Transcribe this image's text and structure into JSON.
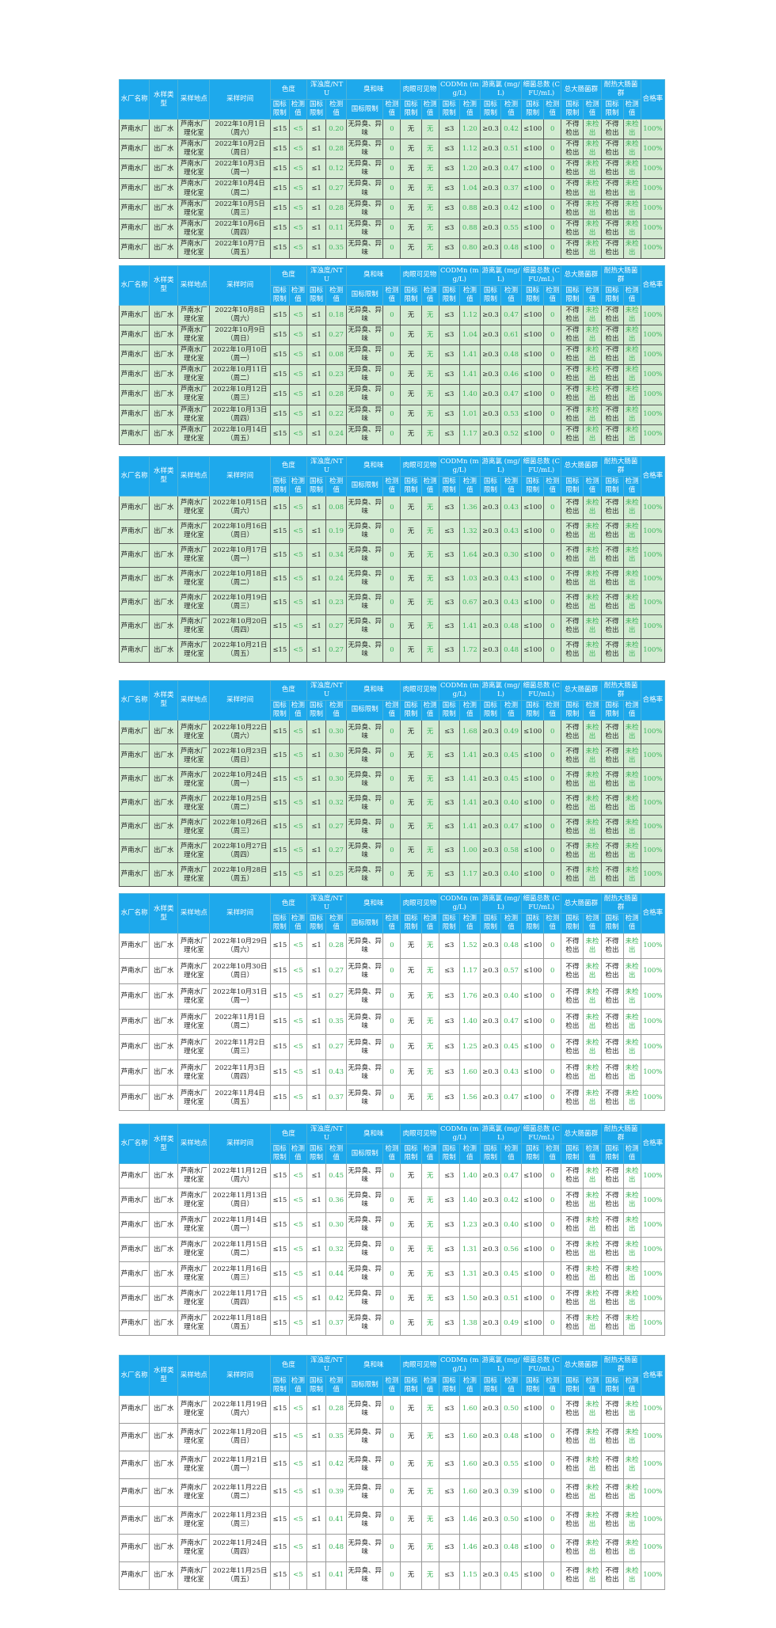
{
  "headers": {
    "plant": "水厂名称",
    "sample_type": "水样类型",
    "site": "采样地点",
    "time": "采样时间",
    "color": "色度",
    "turbidity": "浑浊度/NTU",
    "odor": "臭和味",
    "visible": "肉眼可见物",
    "codmn": "CODMn (mg/L)",
    "chlorine": "游离氯 (mg/L)",
    "bacteria": "细菌总数 (CFU/mL)",
    "coliform": "总大肠菌群",
    "thermo_coliform": "耐热大肠菌群",
    "rate": "合格率",
    "limit": "国标限制",
    "value": "检测值"
  },
  "common": {
    "plant": "芦南水厂",
    "sample_type": "出厂水",
    "site": "芦南水厂理化室",
    "color_limit": "≤15",
    "color_value": "<5",
    "turbidity_limit": "≤1",
    "odor_limit": "无异臭、异味",
    "odor_value": "0",
    "visible_limit": "无",
    "visible_value": "无",
    "codmn_limit": "≤3",
    "chlorine_limit": "≥0.3",
    "bacteria_limit": "≤100",
    "bacteria_value": "0",
    "coliform_limit": "不得检出",
    "coliform_value": "未检出",
    "rate": "100%"
  },
  "tables": [
    {
      "theme": "green",
      "rows": [
        {
          "date": "2022年10月1日",
          "weekday": "（周六）",
          "turbidity": "0.20",
          "codmn": "1.20",
          "chlorine": "0.42"
        },
        {
          "date": "2022年10月2日",
          "weekday": "（周日）",
          "turbidity": "0.28",
          "codmn": "1.12",
          "chlorine": "0.51"
        },
        {
          "date": "2022年10月3日",
          "weekday": "（周一）",
          "turbidity": "0.12",
          "codmn": "1.20",
          "chlorine": "0.47"
        },
        {
          "date": "2022年10月4日",
          "weekday": "（周二）",
          "turbidity": "0.27",
          "codmn": "1.04",
          "chlorine": "0.37"
        },
        {
          "date": "2022年10月5日",
          "weekday": "（周三）",
          "turbidity": "0.28",
          "codmn": "0.88",
          "chlorine": "0.42"
        },
        {
          "date": "2022年10月6日",
          "weekday": "（周四）",
          "turbidity": "0.11",
          "codmn": "0.88",
          "chlorine": "0.55"
        },
        {
          "date": "2022年10月7日",
          "weekday": "（周五）",
          "turbidity": "0.35",
          "codmn": "0.80",
          "chlorine": "0.48"
        }
      ]
    },
    {
      "theme": "green",
      "rows": [
        {
          "date": "2022年10月8日",
          "weekday": "（周六）",
          "turbidity": "0.18",
          "codmn": "1.12",
          "chlorine": "0.47"
        },
        {
          "date": "2022年10月9日",
          "weekday": "（周日）",
          "turbidity": "0.27",
          "codmn": "1.04",
          "chlorine": "0.61"
        },
        {
          "date": "2022年10月10日",
          "weekday": "（周一）",
          "turbidity": "0.08",
          "codmn": "1.41",
          "chlorine": "0.48"
        },
        {
          "date": "2022年10月11日",
          "weekday": "（周二）",
          "turbidity": "0.23",
          "codmn": "1.41",
          "chlorine": "0.46"
        },
        {
          "date": "2022年10月12日",
          "weekday": "（周三）",
          "turbidity": "0.28",
          "codmn": "1.40",
          "chlorine": "0.47"
        },
        {
          "date": "2022年10月13日",
          "weekday": "（周四）",
          "turbidity": "0.22",
          "codmn": "1.01",
          "chlorine": "0.53"
        },
        {
          "date": "2022年10月14日",
          "weekday": "（周五）",
          "turbidity": "0.24",
          "codmn": "1.17",
          "chlorine": "0.52"
        }
      ]
    },
    {
      "theme": "green",
      "rows": [
        {
          "date": "2022年10月15日",
          "weekday": "（周六）",
          "turbidity": "0.08",
          "codmn": "1.36",
          "chlorine": "0.43"
        },
        {
          "date": "2022年10月16日",
          "weekday": "（周日）",
          "turbidity": "0.19",
          "codmn": "1.32",
          "chlorine": "0.43"
        },
        {
          "date": "2022年10月17日",
          "weekday": "（周一）",
          "turbidity": "0.34",
          "codmn": "1.64",
          "chlorine": "0.30"
        },
        {
          "date": "2022年10月18日",
          "weekday": "（周二）",
          "turbidity": "0.24",
          "codmn": "1.03",
          "chlorine": "0.43"
        },
        {
          "date": "2022年10月19日",
          "weekday": "（周三）",
          "turbidity": "0.23",
          "codmn": "0.67",
          "chlorine": "0.43"
        },
        {
          "date": "2022年10月20日",
          "weekday": "（周四）",
          "turbidity": "0.27",
          "codmn": "1.41",
          "chlorine": "0.48"
        },
        {
          "date": "2022年10月21日",
          "weekday": "（周五）",
          "turbidity": "0.27",
          "codmn": "1.72",
          "chlorine": "0.48"
        }
      ]
    },
    {
      "theme": "green",
      "rows": [
        {
          "date": "2022年10月22日",
          "weekday": "（周六）",
          "turbidity": "0.30",
          "codmn": "1.68",
          "chlorine": "0.49"
        },
        {
          "date": "2022年10月23日",
          "weekday": "（周日）",
          "turbidity": "0.30",
          "codmn": "1.41",
          "chlorine": "0.45"
        },
        {
          "date": "2022年10月24日",
          "weekday": "（周一）",
          "turbidity": "0.30",
          "codmn": "1.41",
          "chlorine": "0.45"
        },
        {
          "date": "2022年10月25日",
          "weekday": "（周二）",
          "turbidity": "0.32",
          "codmn": "1.41",
          "chlorine": "0.40"
        },
        {
          "date": "2022年10月26日",
          "weekday": "（周三）",
          "turbidity": "0.27",
          "codmn": "1.41",
          "chlorine": "0.47"
        },
        {
          "date": "2022年10月27日",
          "weekday": "（周四）",
          "turbidity": "0.27",
          "codmn": "1.00",
          "chlorine": "0.58"
        },
        {
          "date": "2022年10月28日",
          "weekday": "（周五）",
          "turbidity": "0.25",
          "codmn": "1.17",
          "chlorine": "0.40"
        }
      ]
    },
    {
      "theme": "white",
      "rows": [
        {
          "date": "2022年10月29日",
          "weekday": "（周六）",
          "turbidity": "0.28",
          "codmn": "1.52",
          "chlorine": "0.48"
        },
        {
          "date": "2022年10月30日",
          "weekday": "（周日）",
          "turbidity": "0.27",
          "codmn": "1.17",
          "chlorine": "0.57"
        },
        {
          "date": "2022年10月31日",
          "weekday": "（周一）",
          "turbidity": "0.27",
          "codmn": "1.76",
          "chlorine": "0.40"
        },
        {
          "date": "2022年11月1日",
          "weekday": "（周二）",
          "turbidity": "0.35",
          "codmn": "1.40",
          "chlorine": "0.47"
        },
        {
          "date": "2022年11月2日",
          "weekday": "（周三）",
          "turbidity": "0.27",
          "codmn": "1.25",
          "chlorine": "0.45"
        },
        {
          "date": "2022年11月3日",
          "weekday": "（周四）",
          "turbidity": "0.43",
          "codmn": "1.60",
          "chlorine": "0.43"
        },
        {
          "date": "2022年11月4日",
          "weekday": "（周五）",
          "turbidity": "0.37",
          "codmn": "1.56",
          "chlorine": "0.47"
        }
      ]
    },
    {
      "theme": "white",
      "rows": [
        {
          "date": "2022年11月12日",
          "weekday": "（周六）",
          "turbidity": "0.45",
          "codmn": "1.40",
          "chlorine": "0.47"
        },
        {
          "date": "2022年11月13日",
          "weekday": "（周日）",
          "turbidity": "0.36",
          "codmn": "1.40",
          "chlorine": "0.42"
        },
        {
          "date": "2022年11月14日",
          "weekday": "（周一）",
          "turbidity": "0.30",
          "codmn": "1.23",
          "chlorine": "0.40"
        },
        {
          "date": "2022年11月15日",
          "weekday": "（周二）",
          "turbidity": "0.32",
          "codmn": "1.31",
          "chlorine": "0.56"
        },
        {
          "date": "2022年11月16日",
          "weekday": "（周三）",
          "turbidity": "0.44",
          "codmn": "1.31",
          "chlorine": "0.45"
        },
        {
          "date": "2022年11月17日",
          "weekday": "（周四）",
          "turbidity": "0.42",
          "codmn": "1.50",
          "chlorine": "0.51"
        },
        {
          "date": "2022年11月18日",
          "weekday": "（周五）",
          "turbidity": "0.37",
          "codmn": "1.38",
          "chlorine": "0.49"
        }
      ]
    },
    {
      "theme": "white",
      "rows": [
        {
          "date": "2022年11月19日",
          "weekday": "（周六）",
          "turbidity": "0.28",
          "codmn": "1.60",
          "chlorine": "0.50"
        },
        {
          "date": "2022年11月20日",
          "weekday": "（周日）",
          "turbidity": "0.35",
          "codmn": "1.60",
          "chlorine": "0.48"
        },
        {
          "date": "2022年11月21日",
          "weekday": "（周一）",
          "turbidity": "0.42",
          "codmn": "1.60",
          "chlorine": "0.55"
        },
        {
          "date": "2022年11月22日",
          "weekday": "（周二）",
          "turbidity": "0.39",
          "codmn": "1.60",
          "chlorine": "0.39"
        },
        {
          "date": "2022年11月23日",
          "weekday": "（周三）",
          "turbidity": "0.41",
          "codmn": "1.46",
          "chlorine": "0.50"
        },
        {
          "date": "2022年11月24日",
          "weekday": "（周四）",
          "turbidity": "0.48",
          "codmn": "1.46",
          "chlorine": "0.48"
        },
        {
          "date": "2022年11月25日",
          "weekday": "（周五）",
          "turbidity": "0.41",
          "codmn": "1.15",
          "chlorine": "0.45"
        }
      ]
    }
  ]
}
